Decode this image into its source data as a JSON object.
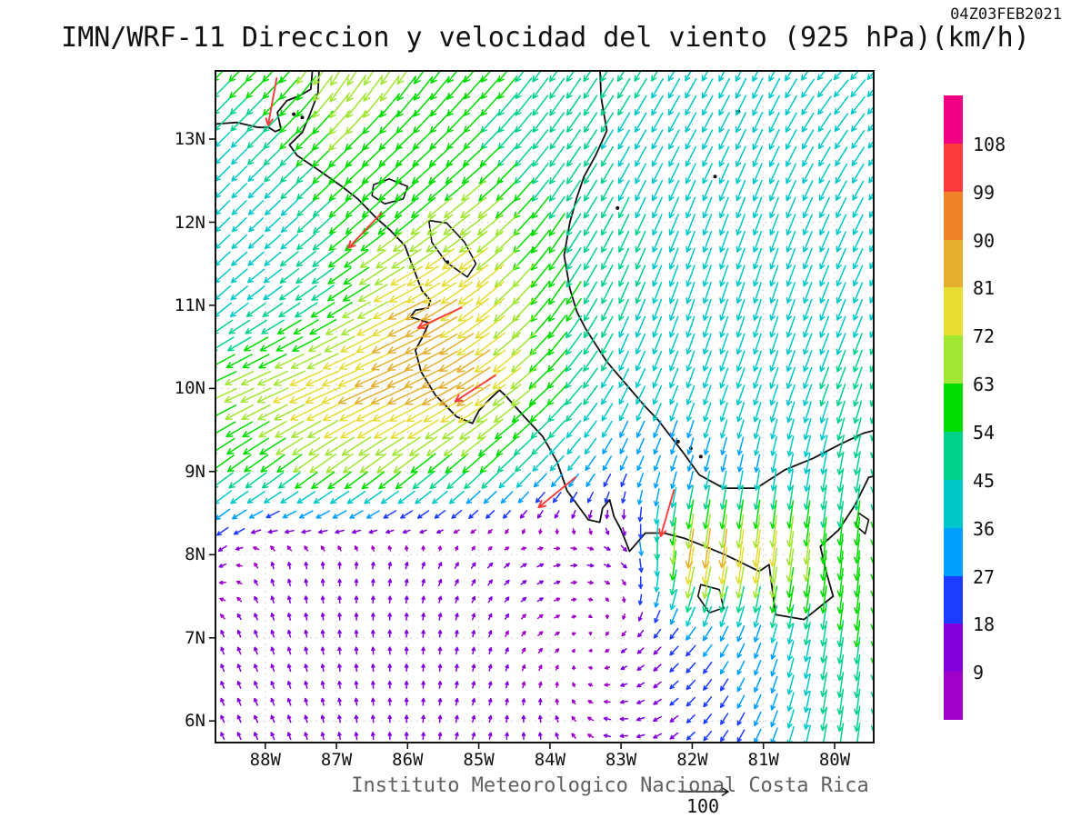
{
  "title": "IMN/WRF-11 Direccion y velocidad del viento (925 hPa)(km/h)",
  "timestamp": "04Z03FEB2021",
  "footer": {
    "text": "Instituto Meteorologico Nacional Costa Rica",
    "ref_value": "100"
  },
  "axes": {
    "lat_ticks": [
      {
        "label": "13N",
        "value": 13
      },
      {
        "label": "12N",
        "value": 12
      },
      {
        "label": "11N",
        "value": 11
      },
      {
        "label": "10N",
        "value": 10
      },
      {
        "label": "9N",
        "value": 9
      },
      {
        "label": "8N",
        "value": 8
      },
      {
        "label": "7N",
        "value": 7
      },
      {
        "label": "6N",
        "value": 6
      }
    ],
    "lon_ticks": [
      {
        "label": "88W",
        "value": -88
      },
      {
        "label": "87W",
        "value": -87
      },
      {
        "label": "86W",
        "value": -86
      },
      {
        "label": "85W",
        "value": -85
      },
      {
        "label": "84W",
        "value": -84
      },
      {
        "label": "83W",
        "value": -83
      },
      {
        "label": "82W",
        "value": -82
      },
      {
        "label": "81W",
        "value": -81
      },
      {
        "label": "80W",
        "value": -80
      }
    ]
  },
  "colorbar": {
    "levels": [
      9,
      18,
      27,
      36,
      45,
      54,
      63,
      72,
      81,
      90,
      99,
      108
    ],
    "colors": [
      "#a000c8",
      "#8200dc",
      "#1e3cff",
      "#00a0ff",
      "#00c8c8",
      "#00d28c",
      "#00dc00",
      "#a0e632",
      "#e6dc32",
      "#e6af2d",
      "#f08228",
      "#fa3c3c",
      "#f00082"
    ]
  },
  "chart_data": {
    "type": "vector_field",
    "variable": "wind direction and speed",
    "level": "925 hPa",
    "units": "km/h",
    "reference_speed": 100,
    "lon_range": [
      -88.7,
      -79.45
    ],
    "lat_range": [
      5.74,
      13.82
    ],
    "speed_levels_kmh": [
      9,
      18,
      27,
      36,
      45,
      54,
      63,
      72,
      81,
      90,
      99,
      108
    ],
    "colors": [
      "#a000c8",
      "#8200dc",
      "#1e3cff",
      "#00a0ff",
      "#00c8c8",
      "#00d28c",
      "#00dc00",
      "#a0e632",
      "#e6dc32",
      "#e6af2d",
      "#f08228",
      "#fa3c3c",
      "#f00082"
    ],
    "grid": {
      "lons": [
        -89,
        -88,
        -87,
        -86,
        -85,
        -84,
        -83,
        -82,
        -81,
        -80,
        -79
      ],
      "lats": [
        14,
        13,
        12,
        11,
        10,
        9,
        8,
        7,
        6,
        5
      ],
      "uv": [
        [
          [
            -45,
            -45
          ],
          [
            -42,
            -42
          ],
          [
            -35,
            -62
          ],
          [
            -35,
            -55
          ],
          [
            -38,
            -45
          ],
          [
            -30,
            -42
          ],
          [
            -25,
            -40
          ],
          [
            -22,
            -38
          ],
          [
            -20,
            -40
          ],
          [
            -30,
            -32
          ],
          [
            -30,
            -32
          ]
        ],
        [
          [
            -25,
            -25
          ],
          [
            -35,
            -35
          ],
          [
            -45,
            -45
          ],
          [
            -42,
            -40
          ],
          [
            -38,
            -38
          ],
          [
            -28,
            -38
          ],
          [
            -22,
            -38
          ],
          [
            -20,
            -38
          ],
          [
            -18,
            -40
          ],
          [
            -24,
            -36
          ],
          [
            -26,
            -34
          ]
        ],
        [
          [
            -28,
            -28
          ],
          [
            -27,
            -26
          ],
          [
            -40,
            -36
          ],
          [
            -48,
            -40
          ],
          [
            -55,
            -42
          ],
          [
            -32,
            -45
          ],
          [
            -20,
            -41
          ],
          [
            -16,
            -41
          ],
          [
            -15,
            -41
          ],
          [
            -18,
            -40
          ],
          [
            -20,
            -38
          ]
        ],
        [
          [
            -30,
            -28
          ],
          [
            -36,
            -26
          ],
          [
            -48,
            -30
          ],
          [
            -75,
            -38
          ],
          [
            -62,
            -48
          ],
          [
            -35,
            -48
          ],
          [
            -18,
            -42
          ],
          [
            -14,
            -42
          ],
          [
            -13,
            -41
          ],
          [
            -16,
            -41
          ],
          [
            -18,
            -40
          ]
        ],
        [
          [
            -55,
            -25
          ],
          [
            -64,
            -28
          ],
          [
            -75,
            -32
          ],
          [
            -80,
            -36
          ],
          [
            -70,
            -45
          ],
          [
            -42,
            -42
          ],
          [
            -18,
            -36
          ],
          [
            -14,
            -38
          ],
          [
            -14,
            -40
          ],
          [
            -16,
            -43
          ],
          [
            -14,
            -46
          ]
        ],
        [
          [
            -44,
            -33
          ],
          [
            -46,
            -35
          ],
          [
            -52,
            -39
          ],
          [
            -48,
            -39
          ],
          [
            -40,
            -38
          ],
          [
            -26,
            -28
          ],
          [
            -12,
            -25
          ],
          [
            -8,
            -29
          ],
          [
            -6,
            -34
          ],
          [
            -8,
            -45
          ],
          [
            -8,
            -50
          ]
        ],
        [
          [
            -17,
            -18
          ],
          [
            -3,
            10
          ],
          [
            0,
            10
          ],
          [
            3,
            10
          ],
          [
            7,
            8
          ],
          [
            10,
            3
          ],
          [
            11,
            -4
          ],
          [
            -12,
            -88
          ],
          [
            -10,
            -80
          ],
          [
            -6,
            -60
          ],
          [
            -6,
            -64
          ]
        ],
        [
          [
            -4,
            11
          ],
          [
            -4,
            11
          ],
          [
            -1,
            11
          ],
          [
            0,
            11
          ],
          [
            2,
            10
          ],
          [
            7,
            5
          ],
          [
            -6,
            -6
          ],
          [
            -18,
            -21
          ],
          [
            -10,
            -30
          ],
          [
            -8,
            -52
          ],
          [
            -4,
            -56
          ]
        ],
        [
          [
            -5,
            11
          ],
          [
            -5,
            11
          ],
          [
            -2,
            11
          ],
          [
            0,
            11
          ],
          [
            3,
            10
          ],
          [
            -2,
            10
          ],
          [
            -12,
            0
          ],
          [
            -14,
            -14
          ],
          [
            -12,
            -27
          ],
          [
            -8,
            -50
          ],
          [
            -4,
            -52
          ]
        ],
        [
          [
            -5,
            11
          ],
          [
            -5,
            11
          ],
          [
            -2,
            11
          ],
          [
            0,
            11
          ],
          [
            3,
            10
          ],
          [
            -2,
            10
          ],
          [
            -12,
            0
          ],
          [
            -14,
            -14
          ],
          [
            -12,
            -27
          ],
          [
            -8,
            -50
          ],
          [
            -4,
            -52
          ]
        ]
      ]
    },
    "strong_arrows": [
      {
        "lon": -87.9,
        "lat": 13.45,
        "u": -18,
        "v": -100
      },
      {
        "lon": -86.6,
        "lat": 11.9,
        "u": -70,
        "v": -74
      },
      {
        "lon": -85.55,
        "lat": 10.85,
        "u": -92,
        "v": -43
      },
      {
        "lon": -85.05,
        "lat": 10.0,
        "u": -85,
        "v": -55
      },
      {
        "lon": -83.9,
        "lat": 8.75,
        "u": -78,
        "v": -64
      },
      {
        "lon": -82.35,
        "lat": 8.5,
        "u": -28,
        "v": -98
      }
    ]
  },
  "map": {
    "coast_paths": [
      [
        [
          -88.72,
          13.18
        ],
        [
          -88.4,
          13.2
        ],
        [
          -88.1,
          13.14
        ],
        [
          -87.95,
          13.14
        ],
        [
          -87.86,
          13.09
        ],
        [
          -87.78,
          13.12
        ],
        [
          -87.83,
          13.32
        ],
        [
          -87.7,
          13.46
        ],
        [
          -87.52,
          13.52
        ],
        [
          -87.36,
          13.6
        ],
        [
          -87.33,
          13.9
        ],
        [
          -87.24,
          13.9
        ],
        [
          -87.26,
          13.55
        ],
        [
          -87.38,
          13.28
        ],
        [
          -87.48,
          13.08
        ],
        [
          -87.66,
          12.93
        ],
        [
          -87.55,
          12.8
        ],
        [
          -87.24,
          12.62
        ],
        [
          -86.94,
          12.44
        ],
        [
          -86.7,
          12.28
        ],
        [
          -86.44,
          12.05
        ],
        [
          -86.24,
          11.9
        ],
        [
          -86.04,
          11.72
        ],
        [
          -85.92,
          11.45
        ],
        [
          -85.8,
          11.18
        ],
        [
          -85.68,
          11.06
        ],
        [
          -85.71,
          10.97
        ],
        [
          -85.89,
          10.94
        ],
        [
          -85.96,
          10.86
        ],
        [
          -85.7,
          10.79
        ],
        [
          -85.79,
          10.62
        ],
        [
          -85.89,
          10.46
        ],
        [
          -85.81,
          10.2
        ],
        [
          -85.61,
          9.92
        ],
        [
          -85.31,
          9.66
        ],
        [
          -85.09,
          9.58
        ],
        [
          -85.0,
          9.73
        ],
        [
          -84.86,
          9.86
        ],
        [
          -84.71,
          9.98
        ],
        [
          -84.62,
          9.91
        ],
        [
          -84.36,
          9.66
        ],
        [
          -84.1,
          9.42
        ],
        [
          -83.9,
          9.12
        ],
        [
          -83.76,
          8.77
        ],
        [
          -83.46,
          8.42
        ],
        [
          -83.3,
          8.39
        ],
        [
          -83.26,
          8.56
        ],
        [
          -83.16,
          8.66
        ],
        [
          -83.1,
          8.46
        ],
        [
          -83.0,
          8.3
        ],
        [
          -82.88,
          8.04
        ],
        [
          -82.66,
          8.26
        ],
        [
          -82.4,
          8.26
        ],
        [
          -82.12,
          8.2
        ],
        [
          -81.82,
          8.1
        ],
        [
          -81.54,
          8.0
        ],
        [
          -81.06,
          7.8
        ],
        [
          -80.92,
          7.88
        ],
        [
          -80.87,
          7.55
        ],
        [
          -80.83,
          7.28
        ],
        [
          -80.43,
          7.22
        ],
        [
          -80.02,
          7.5
        ],
        [
          -80.12,
          7.8
        ],
        [
          -80.2,
          8.1
        ],
        [
          -79.94,
          8.3
        ],
        [
          -79.71,
          8.6
        ],
        [
          -79.52,
          8.93
        ],
        [
          -79.42,
          8.95
        ]
      ],
      [
        [
          -83.3,
          13.9
        ],
        [
          -83.28,
          13.5
        ],
        [
          -83.2,
          13.1
        ],
        [
          -83.36,
          12.8
        ],
        [
          -83.52,
          12.55
        ],
        [
          -83.62,
          12.3
        ],
        [
          -83.72,
          12.0
        ],
        [
          -83.8,
          11.6
        ],
        [
          -83.72,
          11.2
        ],
        [
          -83.62,
          10.92
        ],
        [
          -83.5,
          10.72
        ],
        [
          -83.2,
          10.32
        ],
        [
          -82.9,
          10.02
        ],
        [
          -82.68,
          9.8
        ],
        [
          -82.48,
          9.62
        ],
        [
          -82.3,
          9.42
        ],
        [
          -82.12,
          9.22
        ],
        [
          -81.9,
          8.96
        ],
        [
          -81.56,
          8.8
        ],
        [
          -81.1,
          8.8
        ],
        [
          -80.7,
          9.02
        ],
        [
          -80.3,
          9.16
        ],
        [
          -79.94,
          9.32
        ],
        [
          -79.6,
          9.46
        ],
        [
          -79.42,
          9.5
        ]
      ]
    ],
    "lakes": [
      [
        [
          -86.5,
          12.32
        ],
        [
          -86.48,
          12.45
        ],
        [
          -86.26,
          12.52
        ],
        [
          -86.0,
          12.43
        ],
        [
          -86.06,
          12.28
        ],
        [
          -86.32,
          12.22
        ]
      ],
      [
        [
          -85.7,
          12.02
        ],
        [
          -85.45,
          11.99
        ],
        [
          -85.2,
          11.76
        ],
        [
          -85.04,
          11.5
        ],
        [
          -85.16,
          11.34
        ],
        [
          -85.46,
          11.52
        ],
        [
          -85.66,
          11.76
        ]
      ]
    ],
    "islands": [
      [
        [
          -81.88,
          7.64
        ],
        [
          -81.62,
          7.58
        ],
        [
          -81.56,
          7.36
        ],
        [
          -81.76,
          7.3
        ],
        [
          -81.92,
          7.5
        ]
      ],
      [
        [
          -79.66,
          8.5
        ],
        [
          -79.52,
          8.42
        ],
        [
          -79.57,
          8.25
        ],
        [
          -79.7,
          8.35
        ]
      ]
    ],
    "islets": [
      [
        -81.68,
        12.55
      ],
      [
        -81.35,
        13.33
      ],
      [
        -83.05,
        12.17
      ],
      [
        -82.2,
        9.36
      ],
      [
        -82.02,
        9.28
      ],
      [
        -81.88,
        9.18
      ],
      [
        -87.6,
        13.3
      ],
      [
        -87.48,
        13.26
      ],
      [
        -85.44,
        11.52
      ]
    ]
  }
}
